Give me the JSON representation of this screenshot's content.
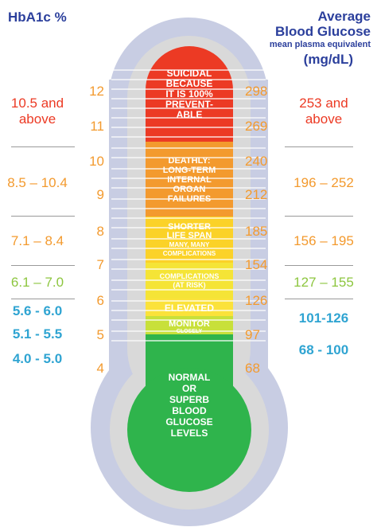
{
  "header": {
    "left_title": "HbA1c %",
    "right_title_line1": "Average",
    "right_title_line2": "Blood Glucose",
    "right_subtitle": "mean plasma equivalent",
    "right_unit": "(mg/dL)"
  },
  "scale": {
    "hba1c": [
      "12",
      "11",
      "10",
      "9",
      "8",
      "7",
      "6",
      "5",
      "4"
    ],
    "glucose": [
      "298",
      "269",
      "240",
      "212",
      "185",
      "154",
      "126",
      "97",
      "68"
    ]
  },
  "zones": [
    {
      "lines": [
        "SUICIDAL",
        "BECAUSE",
        "IT IS 100%",
        "PREVENT-",
        "ABLE"
      ],
      "color": "#ec3a24"
    },
    {
      "lines": [
        "DEATHLY:",
        "LONG-TERM",
        "INTERNAL",
        "ORGAN",
        "FAILURES"
      ],
      "color": "#f39a2e"
    },
    {
      "lines": [
        "SHORTER",
        "LIFE SPAN",
        "MANY, MANY",
        "COMPLICATIONS"
      ],
      "color": "#fbd228"
    },
    {
      "lines": [
        "COMPLICATIONS",
        "(AT RISK)"
      ],
      "color": "#f5e436"
    },
    {
      "lines": [
        "ELEVATED"
      ],
      "color": "#fbe23a"
    },
    {
      "lines": [
        "MONITOR",
        "CLOSELY"
      ],
      "color": "#c8e03a"
    },
    {
      "lines": [
        "NORMAL",
        "OR",
        "SUPERB",
        "BLOOD",
        "GLUCOSE",
        "LEVELS"
      ],
      "color": "#2fb44c"
    }
  ],
  "ranges_left": [
    {
      "lines": [
        "10.5 and",
        "above"
      ],
      "color": "#ec3a24"
    },
    {
      "lines": [
        "8.5 – 10.4"
      ],
      "color": "#f39a2e"
    },
    {
      "lines": [
        "7.1 – 8.4"
      ],
      "color": "#f39a2e"
    },
    {
      "lines": [
        "6.1 – 7.0"
      ],
      "color": "#8dc63f"
    },
    {
      "lines": [
        "5.6 - 6.0"
      ],
      "color": "#2fa4d2"
    },
    {
      "lines": [
        "5.1 - 5.5"
      ],
      "color": "#2fa4d2"
    },
    {
      "lines": [
        "4.0 - 5.0"
      ],
      "color": "#2fa4d2"
    }
  ],
  "ranges_right": [
    {
      "lines": [
        "253 and",
        "above"
      ],
      "color": "#ec3a24"
    },
    {
      "lines": [
        "196 – 252"
      ],
      "color": "#f39a2e"
    },
    {
      "lines": [
        "156 – 195"
      ],
      "color": "#f39a2e"
    },
    {
      "lines": [
        "127 – 155"
      ],
      "color": "#8dc63f"
    },
    {
      "lines": [
        "101-126"
      ],
      "color": "#2fa4d2"
    },
    {
      "lines": [
        "68 - 100"
      ],
      "color": "#2fa4d2"
    }
  ],
  "colors": {
    "outer_shell": "#c8cde3",
    "inner_shell": "#d9d9d9",
    "tick_line": "#ffffff",
    "scale_number": "#f39a2e",
    "header": "#2b3f9c",
    "separator": "#9a9a9a"
  }
}
